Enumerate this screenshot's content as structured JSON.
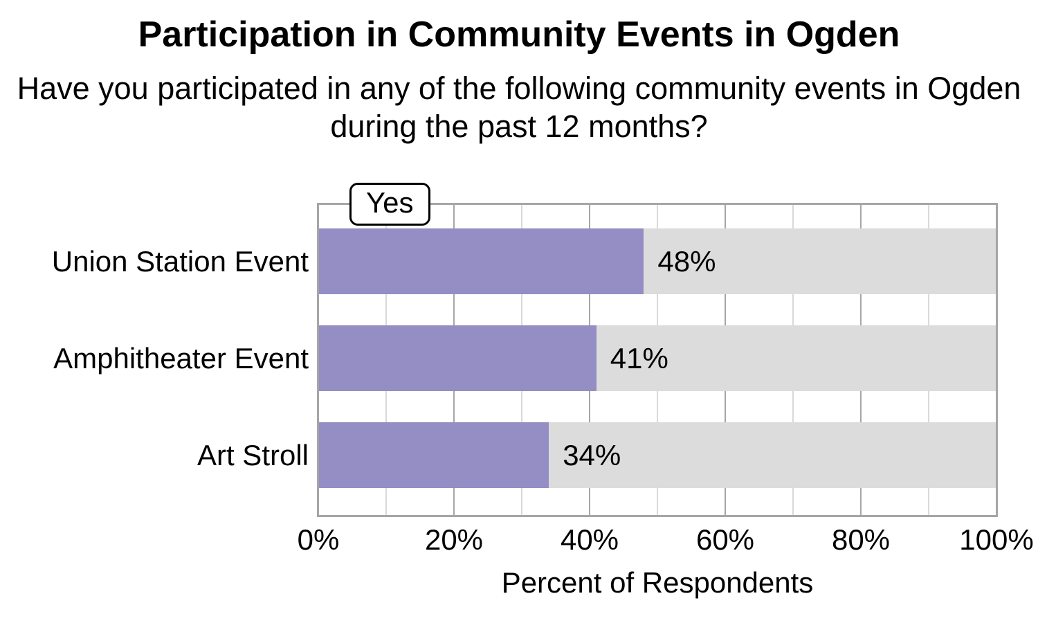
{
  "title": "Participation in Community Events in Ogden",
  "subtitle": "Have you participated in any of the following community events in Ogden during the past 12 months?",
  "legend": {
    "label": "Yes"
  },
  "colors": {
    "bar": "#948ec4",
    "track": "#dcdcdc",
    "plot_border": "#a6a6a6",
    "grid_major": "#a6a6a6",
    "grid_minor": "#d9d9d9",
    "text": "#000000",
    "legend_border": "#000000"
  },
  "chart_data": {
    "type": "bar",
    "orientation": "horizontal",
    "title": "Participation in Community Events in Ogden",
    "subtitle": "Have you participated in any of the following community events in Ogden during the past 12 months?",
    "categories": [
      "Union Station Event",
      "Amphitheater Event",
      "Art Stroll"
    ],
    "series": [
      {
        "name": "Yes",
        "values": [
          48,
          41,
          34
        ]
      }
    ],
    "value_labels": [
      "48%",
      "41%",
      "34%"
    ],
    "xlabel": "Percent of Respondents",
    "ylabel": "",
    "xlim": [
      0,
      100
    ],
    "x_ticks": [
      {
        "value": 0,
        "label": "0%"
      },
      {
        "value": 20,
        "label": "20%"
      },
      {
        "value": 40,
        "label": "40%"
      },
      {
        "value": 60,
        "label": "60%"
      },
      {
        "value": 80,
        "label": "80%"
      },
      {
        "value": 100,
        "label": "100%"
      }
    ],
    "grid": {
      "minor_step": 10,
      "major_step": 20
    },
    "legend_position": "top-left-overlapping-plot-border"
  }
}
